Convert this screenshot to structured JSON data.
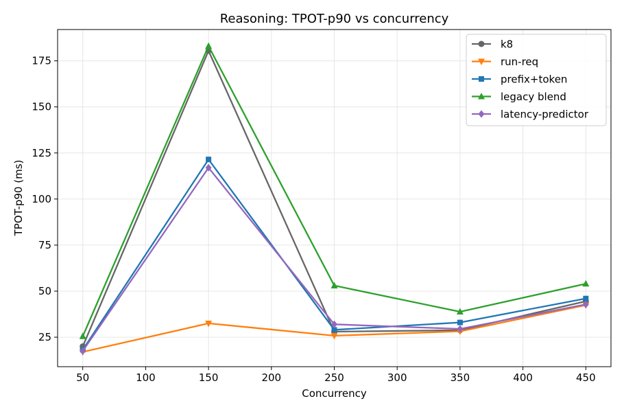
{
  "chart_data": {
    "type": "line",
    "title": "Reasoning: TPOT-p90 vs concurrency",
    "xlabel": "Concurrency",
    "ylabel": "TPOT-p90 (ms)",
    "x": [
      50,
      150,
      250,
      350,
      450
    ],
    "xlim": [
      30,
      470
    ],
    "ylim": [
      9,
      192
    ],
    "xticks": [
      50,
      100,
      150,
      200,
      250,
      300,
      350,
      400,
      450
    ],
    "yticks": [
      25,
      50,
      75,
      100,
      125,
      150,
      175
    ],
    "grid": true,
    "legend_position": "top-right",
    "series": [
      {
        "name": "k8",
        "color": "#666666",
        "marker": "circle",
        "values": [
          20,
          180.5,
          28,
          28.8,
          44.5
        ]
      },
      {
        "name": "run-req",
        "color": "#ff7f0e",
        "marker": "triangle-down",
        "values": [
          17,
          32.5,
          25.8,
          28.2,
          42.4
        ]
      },
      {
        "name": "prefix+token",
        "color": "#1f77b4",
        "marker": "square",
        "values": [
          18.2,
          121.5,
          29,
          33,
          46
        ]
      },
      {
        "name": "legacy blend",
        "color": "#2ca02c",
        "marker": "triangle-up",
        "values": [
          25.5,
          183,
          53,
          38.8,
          54
        ]
      },
      {
        "name": "latency-predictor",
        "color": "#9467bd",
        "marker": "diamond",
        "values": [
          17.5,
          117,
          32,
          29.5,
          42.8
        ]
      }
    ]
  }
}
